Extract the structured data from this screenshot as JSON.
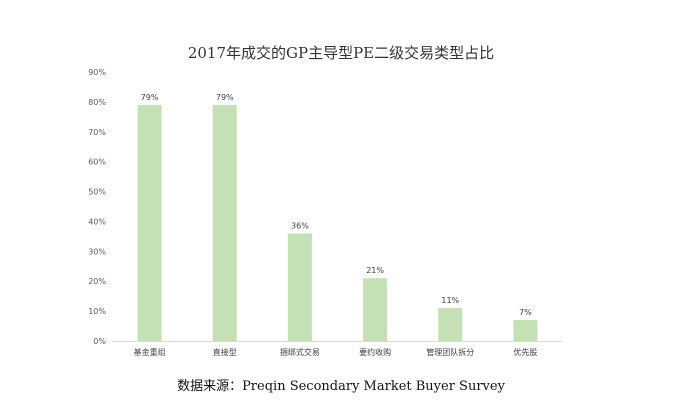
{
  "chart_data": {
    "type": "bar",
    "title": "2017年成交的GP主导型PE二级交易类型占比",
    "categories": [
      "基金重组",
      "直接型",
      "捆绑式交易",
      "要约收购",
      "管理团队拆分",
      "优先股"
    ],
    "values": [
      79,
      79,
      36,
      21,
      11,
      7
    ],
    "data_labels": [
      "79%",
      "79%",
      "36%",
      "21%",
      "11%",
      "7%"
    ],
    "y_ticks": [
      "0%",
      "10%",
      "20%",
      "30%",
      "40%",
      "50%",
      "60%",
      "70%",
      "80%",
      "90%"
    ],
    "ylim": [
      0,
      90
    ],
    "xlabel": "",
    "ylabel": "",
    "grid": false,
    "legend": "none",
    "colors": {
      "bar": "#c5e0b4",
      "axis": "#d9d9d9"
    }
  },
  "source": "数据来源：Preqin Secondary Market Buyer Survey"
}
